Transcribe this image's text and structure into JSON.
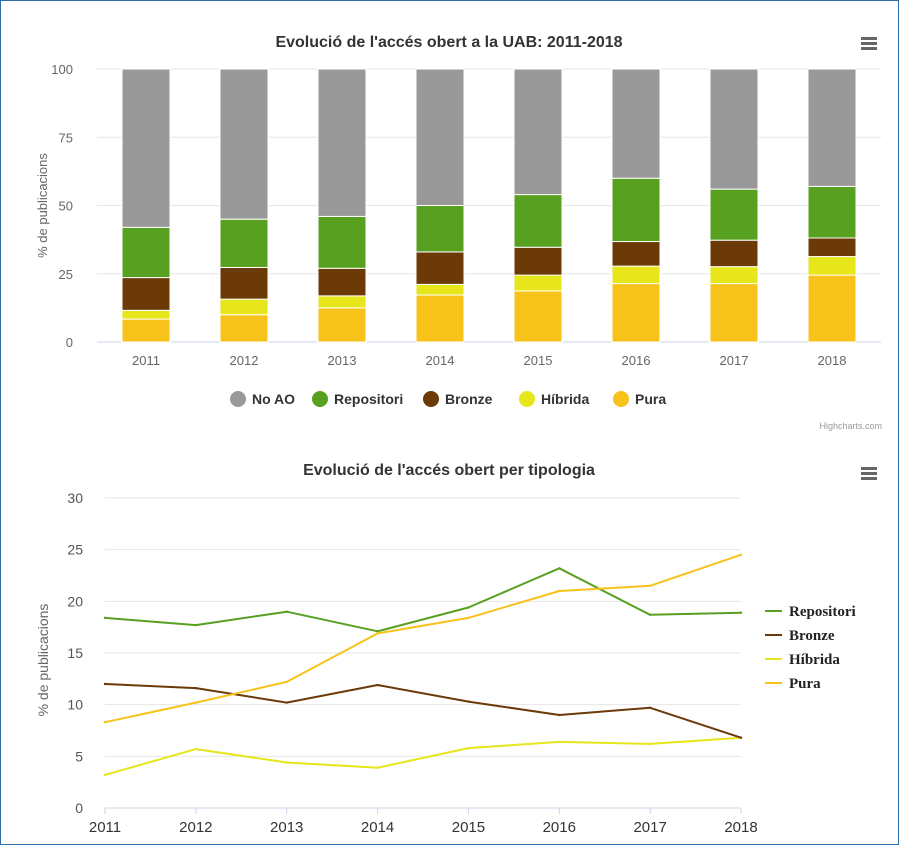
{
  "chart_data": [
    {
      "type": "bar",
      "stacked": true,
      "title": "Evolució de l'accés obert a la UAB: 2011-2018",
      "ylabel": "% de publicacions",
      "xlabel": "",
      "ylim": [
        0,
        100
      ],
      "yticks": [
        "0",
        "25",
        "50",
        "75",
        "100"
      ],
      "categories": [
        "2011",
        "2012",
        "2013",
        "2014",
        "2015",
        "2016",
        "2017",
        "2018"
      ],
      "legend_position": "bottom",
      "grid": true,
      "series": [
        {
          "name": "No AO",
          "color": "#999999",
          "values": [
            58,
            55,
            54,
            50,
            46,
            40,
            44,
            43
          ]
        },
        {
          "name": "Repositori",
          "color": "#57a020",
          "values": [
            18.4,
            17.7,
            19.0,
            17.0,
            19.3,
            23.2,
            18.7,
            18.9
          ]
        },
        {
          "name": "Bronze",
          "color": "#6b3a07",
          "values": [
            12.0,
            11.6,
            10.1,
            11.9,
            10.2,
            9.0,
            9.7,
            6.8
          ]
        },
        {
          "name": "Híbrida",
          "color": "#e6e61a",
          "values": [
            3.2,
            5.7,
            4.4,
            3.9,
            5.8,
            6.4,
            6.2,
            6.8
          ]
        },
        {
          "name": "Pura",
          "color": "#f7c31b",
          "values": [
            8.4,
            10.0,
            12.5,
            17.2,
            18.7,
            21.4,
            21.4,
            24.5
          ]
        }
      ],
      "credit": "Highcharts.com"
    },
    {
      "type": "line",
      "title": "Evolució de l'accés obert per tipologia",
      "ylabel": "% de publicacions",
      "xlabel": "",
      "ylim": [
        0,
        30
      ],
      "yticks": [
        "0",
        "5",
        "10",
        "15",
        "20",
        "25",
        "30"
      ],
      "categories": [
        "2011",
        "2012",
        "2013",
        "2014",
        "2015",
        "2016",
        "2017",
        "2018"
      ],
      "legend_position": "right",
      "grid": true,
      "series": [
        {
          "name": "Repositori",
          "color": "#57a020",
          "values": [
            18.4,
            17.7,
            19.0,
            17.1,
            19.4,
            23.2,
            18.7,
            18.9
          ]
        },
        {
          "name": "Bronze",
          "color": "#6b3a07",
          "values": [
            12.0,
            11.6,
            10.2,
            11.9,
            10.3,
            9.0,
            9.7,
            6.8
          ]
        },
        {
          "name": "Híbrida",
          "color": "#e6e61a",
          "values": [
            3.2,
            5.7,
            4.4,
            3.9,
            5.8,
            6.4,
            6.2,
            6.8
          ]
        },
        {
          "name": "Pura",
          "color": "#f7c31b",
          "values": [
            8.3,
            10.2,
            12.2,
            16.9,
            18.4,
            21.0,
            21.5,
            24.5
          ]
        }
      ]
    }
  ],
  "icons": {
    "menu": "hamburger-menu-icon"
  }
}
